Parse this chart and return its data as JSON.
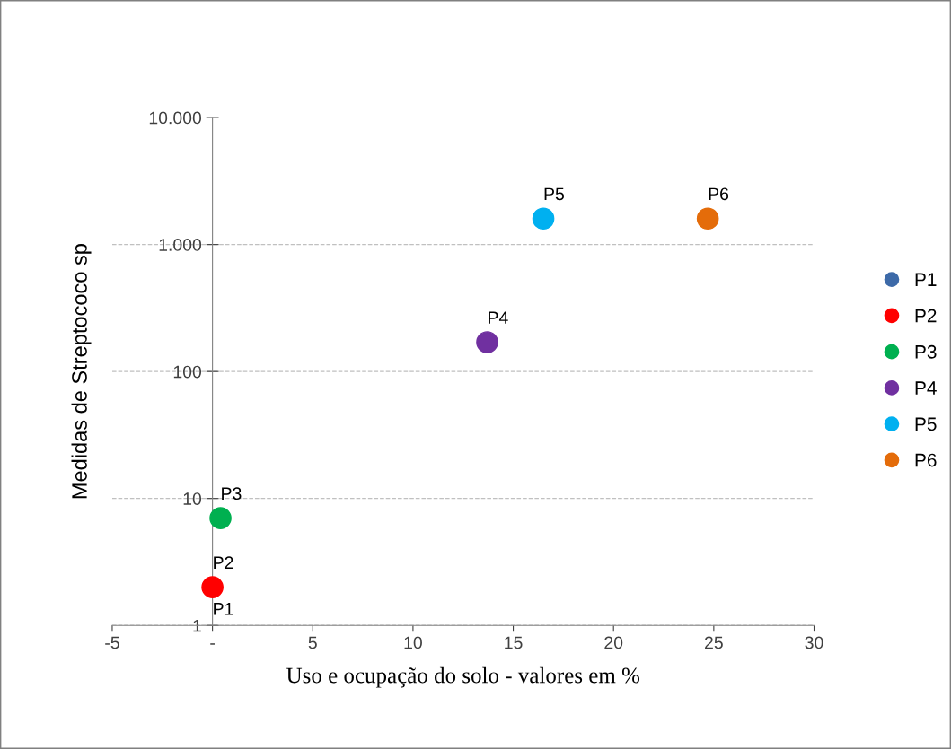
{
  "chart_data": {
    "type": "scatter",
    "xlabel": "Uso e ocupação do solo - valores em %",
    "ylabel": "Medidas de Streptococo sp",
    "series": [
      {
        "name": "P1",
        "color": "#3d6aa8"
      },
      {
        "name": "P2",
        "color": "#ff0000",
        "x": [
          0
        ],
        "values": [
          2
        ]
      },
      {
        "name": "P3",
        "color": "#00b050",
        "x": [
          0.4
        ],
        "values": [
          7
        ]
      },
      {
        "name": "P4",
        "color": "#7030a0",
        "x": [
          13.7
        ],
        "values": [
          170
        ]
      },
      {
        "name": "P5",
        "color": "#00b0f0",
        "x": [
          16.5
        ],
        "values": [
          1600
        ]
      },
      {
        "name": "P6",
        "color": "#e46c0a",
        "x": [
          24.7
        ],
        "values": [
          1600
        ]
      }
    ],
    "annotations": [
      {
        "text": "P1",
        "x": 0,
        "y": 2
      },
      {
        "text": "P2",
        "x": 0,
        "y": 2
      },
      {
        "text": "P3",
        "x": 0.4,
        "y": 7
      },
      {
        "text": "P4",
        "x": 13.7,
        "y": 170
      },
      {
        "text": "P5",
        "x": 16.5,
        "y": 1600
      },
      {
        "text": "P6",
        "x": 24.7,
        "y": 1600
      }
    ],
    "log": "y",
    "xlim": [
      -5,
      30
    ],
    "ylim": [
      1,
      10000
    ],
    "xticks": [
      -5,
      {
        "value": 0,
        "label": "-"
      },
      5,
      10,
      15,
      20,
      25,
      30
    ],
    "yticks": [
      1,
      10,
      100,
      {
        "value": 1000,
        "label": "1.000"
      },
      {
        "value": 10000,
        "label": "10.000"
      }
    ],
    "grid": "y",
    "legend": "right",
    "marker": "circle"
  }
}
